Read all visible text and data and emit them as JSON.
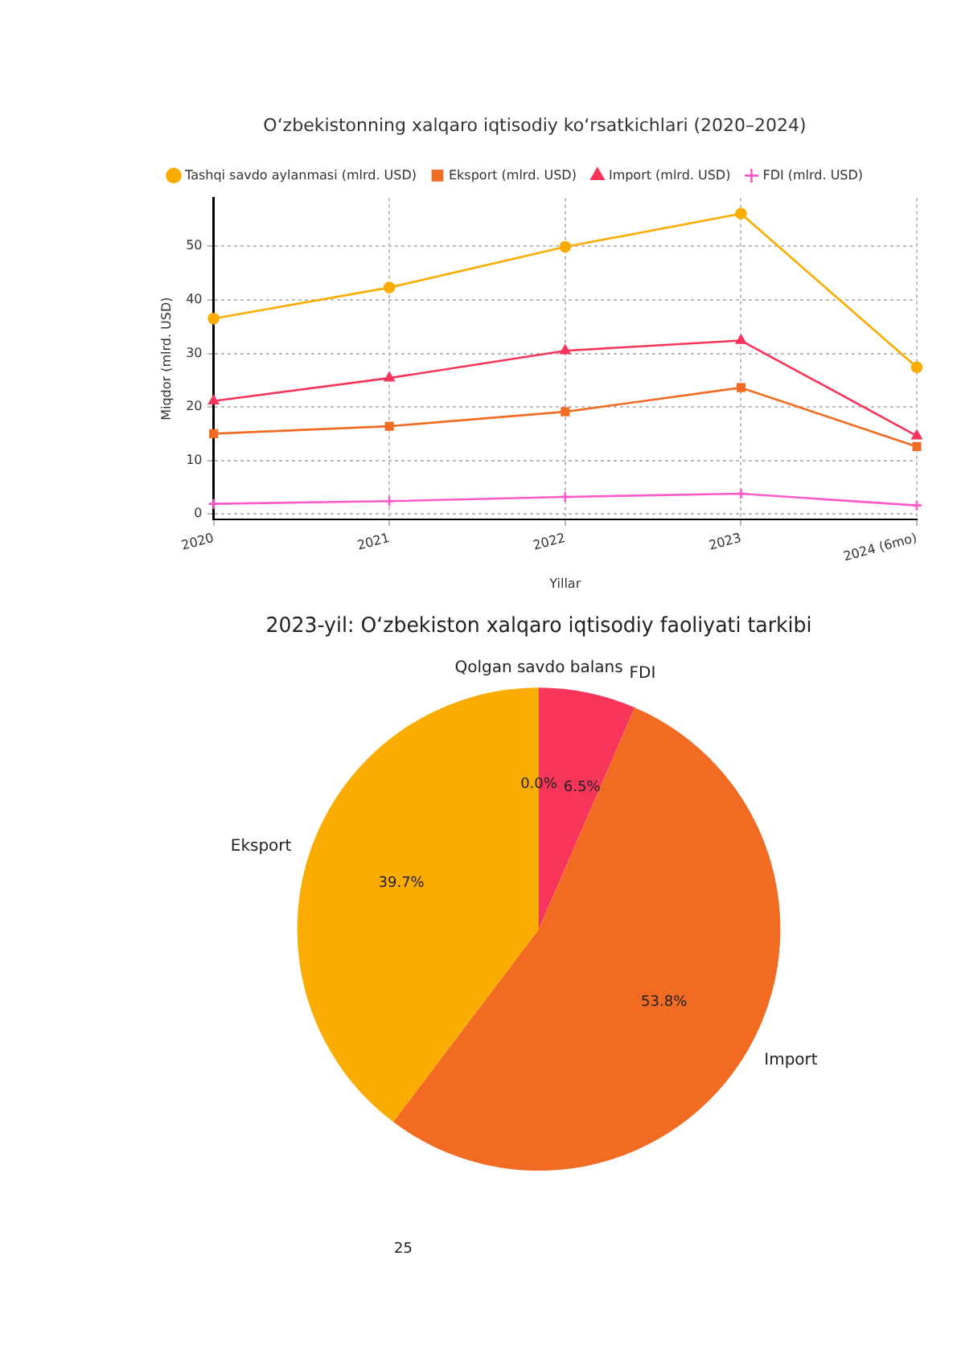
{
  "chart_data": [
    {
      "type": "line",
      "title": "O‘zbekistonning xalqaro iqtisodiy ko‘rsatkichlari (2020–2024)",
      "xlabel": "Yillar",
      "ylabel": "Miqdor (mlrd. USD)",
      "categories": [
        "2020",
        "2021",
        "2022",
        "2023",
        "2024 (6mo)"
      ],
      "series": [
        {
          "name": "Tashqi savdo aylanmasi (mlrd. USD)",
          "color": "#fbac00",
          "marker": "circle",
          "values": [
            36.5,
            42.3,
            49.9,
            56.1,
            27.4
          ]
        },
        {
          "name": "Eksport (mlrd. USD)",
          "color": "#f26b22",
          "marker": "square",
          "values": [
            15.0,
            16.4,
            19.1,
            23.6,
            12.6
          ]
        },
        {
          "name": "Import (mlrd. USD)",
          "color": "#f7345a",
          "marker": "triangle",
          "values": [
            21.1,
            25.4,
            30.5,
            32.4,
            14.6
          ]
        },
        {
          "name": "FDI (mlrd. USD)",
          "color": "#ff5ac8",
          "marker": "cross",
          "values": [
            1.9,
            2.4,
            3.2,
            3.8,
            1.6
          ]
        }
      ],
      "ylim": [
        -1,
        59
      ],
      "yticks": [
        0,
        10,
        20,
        30,
        40,
        50
      ],
      "grid": true,
      "line_style": "solid",
      "legend": "top left"
    },
    {
      "type": "pie",
      "title": "2023-yil: O‘zbekiston xalqaro iqtisodiy faoliyati tarkibi",
      "categories": [
        "Qolgan savdo balans",
        "FDI",
        "Import",
        "Eksport"
      ],
      "values": [
        0.0,
        6.5,
        53.8,
        39.7
      ],
      "value_labels": [
        "0.0%",
        "6.5%",
        "53.8%",
        "39.7%"
      ],
      "colors": [
        "#8bc34a",
        "#f7345a",
        "#f26b22",
        "#fbac00"
      ],
      "annotations": [
        "25"
      ]
    }
  ]
}
